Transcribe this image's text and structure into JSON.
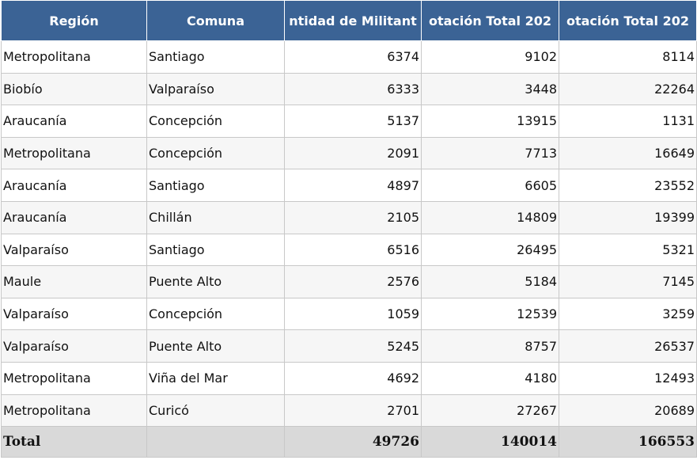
{
  "table": {
    "columns": [
      "Región",
      "Comuna",
      "ntidad de Militant",
      "otación Total 202",
      "otación Total 202"
    ],
    "rows": [
      [
        "Metropolitana",
        "Santiago",
        6374,
        9102,
        8114
      ],
      [
        "Biobío",
        "Valparaíso",
        6333,
        3448,
        22264
      ],
      [
        "Araucanía",
        "Concepción",
        5137,
        13915,
        1131
      ],
      [
        "Metropolitana",
        "Concepción",
        2091,
        7713,
        16649
      ],
      [
        "Araucanía",
        "Santiago",
        4897,
        6605,
        23552
      ],
      [
        "Araucanía",
        "Chillán",
        2105,
        14809,
        19399
      ],
      [
        "Valparaíso",
        "Santiago",
        6516,
        26495,
        5321
      ],
      [
        "Maule",
        "Puente Alto",
        2576,
        5184,
        7145
      ],
      [
        "Valparaíso",
        "Concepción",
        1059,
        12539,
        3259
      ],
      [
        "Valparaíso",
        "Puente Alto",
        5245,
        8757,
        26537
      ],
      [
        "Metropolitana",
        "Viña del Mar",
        4692,
        4180,
        12493
      ],
      [
        "Metropolitana",
        "Curicó",
        2701,
        27267,
        20689
      ]
    ],
    "total": {
      "label": "Total",
      "values": [
        49726,
        140014,
        166553
      ]
    }
  }
}
